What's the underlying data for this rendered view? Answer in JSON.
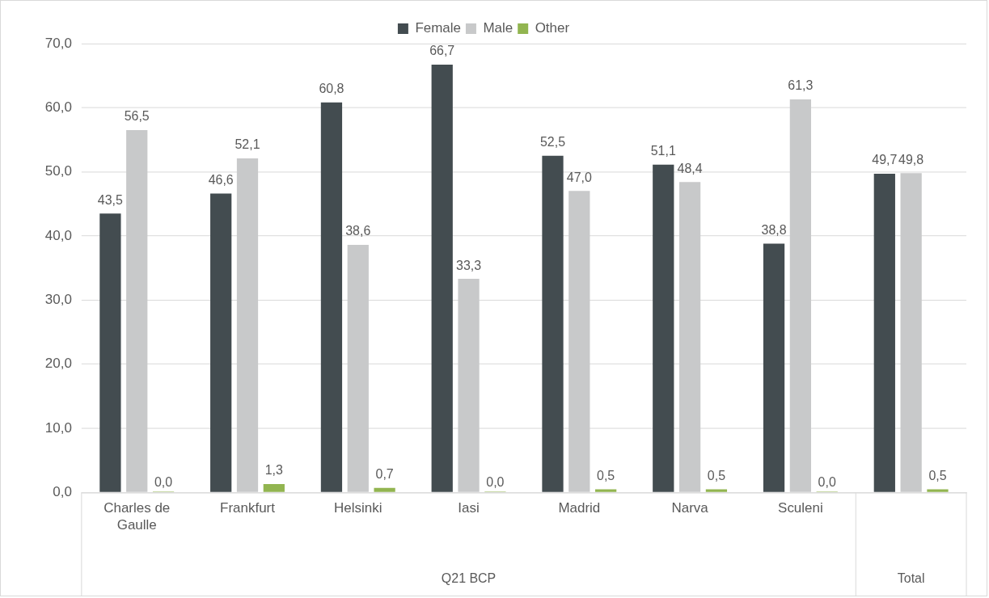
{
  "chart_data": {
    "type": "bar",
    "categories": [
      "Charles de Gaulle",
      "Frankfurt",
      "Helsinki",
      "Iasi",
      "Madrid",
      "Narva",
      "Sculeni",
      null
    ],
    "series": [
      {
        "name": "Female",
        "color": "#434c50",
        "values": [
          43.5,
          46.6,
          60.8,
          66.7,
          52.5,
          51.1,
          38.8,
          49.7
        ],
        "value_labels": [
          "43,5",
          "46,6",
          "60,8",
          "66,7",
          "52,5",
          "51,1",
          "38,8",
          "49,7"
        ]
      },
      {
        "name": "Male",
        "color": "#c8c9ca",
        "values": [
          56.5,
          52.1,
          38.6,
          33.3,
          47.0,
          48.4,
          61.3,
          49.8
        ],
        "value_labels": [
          "56,5",
          "52,1",
          "38,6",
          "33,3",
          "47,0",
          "48,4",
          "61,3",
          "49,8"
        ]
      },
      {
        "name": "Other",
        "color": "#92b550",
        "values": [
          0.0,
          1.3,
          0.7,
          0.0,
          0.5,
          0.5,
          0.0,
          0.5
        ],
        "value_labels": [
          "0,0",
          "1,3",
          "0,7",
          "0,0",
          "0,5",
          "0,5",
          "0,0",
          "0,5"
        ]
      }
    ],
    "ylim": [
      0,
      70
    ],
    "yticks": [
      {
        "value": 0,
        "label": "0,0"
      },
      {
        "value": 10,
        "label": "10,0"
      },
      {
        "value": 20,
        "label": "20,0"
      },
      {
        "value": 30,
        "label": "30,0"
      },
      {
        "value": 40,
        "label": "40,0"
      },
      {
        "value": 50,
        "label": "50,0"
      },
      {
        "value": 60,
        "label": "60,0"
      },
      {
        "value": 70,
        "label": "70,0"
      }
    ],
    "grid": "y",
    "legend": "top",
    "annotations": [
      "Q21 BCP",
      "Total"
    ]
  }
}
